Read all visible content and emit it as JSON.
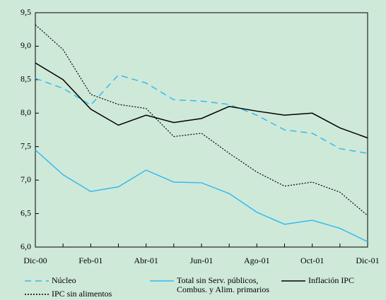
{
  "chart_data": {
    "type": "line",
    "categories": [
      "Dic-00",
      null,
      "Feb-01",
      null,
      "Abr-01",
      null,
      "Jun-01",
      null,
      "Ago-01",
      null,
      "Oct-01",
      null,
      "Dic-01"
    ],
    "series": [
      {
        "name": "Núcleo",
        "color": "#33bbee",
        "dash": "dashed",
        "values": [
          8.52,
          8.37,
          8.12,
          8.57,
          8.45,
          8.2,
          8.18,
          8.13,
          7.97,
          7.75,
          7.7,
          7.47,
          7.4
        ]
      },
      {
        "name": "Total sin Serv. públicos, Combus. y Alim. primarios",
        "color": "#33bbee",
        "dash": "solid",
        "values": [
          7.45,
          7.08,
          6.83,
          6.9,
          7.15,
          6.97,
          6.96,
          6.8,
          6.52,
          6.34,
          6.4,
          6.28,
          6.08
        ]
      },
      {
        "name": "Inflación IPC",
        "color": "#000000",
        "dash": "solid",
        "values": [
          8.75,
          8.5,
          8.06,
          7.82,
          7.97,
          7.86,
          7.92,
          8.1,
          8.03,
          7.97,
          8.0,
          7.78,
          7.63
        ]
      },
      {
        "name": "IPC sin alimentos",
        "color": "#000000",
        "dash": "dotted",
        "values": [
          9.32,
          8.95,
          8.28,
          8.13,
          8.07,
          7.65,
          7.7,
          7.4,
          7.12,
          6.91,
          6.97,
          6.82,
          6.47
        ]
      }
    ],
    "ylim": [
      6.0,
      9.5
    ],
    "yticks": [
      {
        "value": 6.0,
        "label": "6,0"
      },
      {
        "value": 6.5,
        "label": "6,5"
      },
      {
        "value": 7.0,
        "label": "7,0"
      },
      {
        "value": 7.5,
        "label": "7,5"
      },
      {
        "value": 8.0,
        "label": "8,0"
      },
      {
        "value": 8.5,
        "label": "8,5"
      },
      {
        "value": 9.0,
        "label": "9,0"
      },
      {
        "value": 9.5,
        "label": "9,5"
      }
    ],
    "legend": "bottom"
  }
}
